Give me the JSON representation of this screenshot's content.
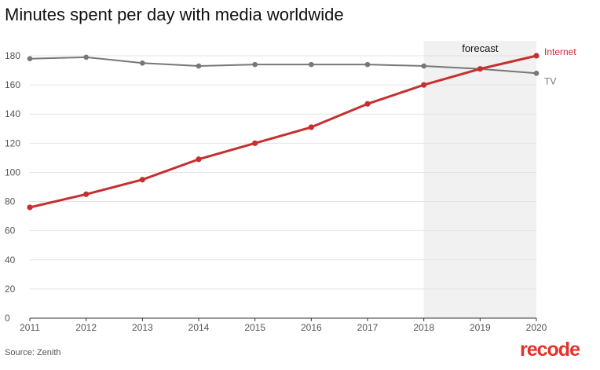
{
  "source": "Source: Zenith",
  "brand": "recode",
  "colors": {
    "internet": "#c62f2f",
    "tv": "#777777",
    "forecast_band": "#f1f1f1",
    "grid": "#e4e4e4",
    "brand": "#e8302a"
  },
  "chart_data": {
    "type": "line",
    "title": "Minutes spent per day with media worldwide",
    "xlabel": "",
    "ylabel": "",
    "x": [
      "2011",
      "2012",
      "2013",
      "2014",
      "2015",
      "2016",
      "2017",
      "2018",
      "2019",
      "2020"
    ],
    "ylim": [
      0,
      180
    ],
    "yticks": [
      0,
      20,
      40,
      60,
      80,
      100,
      120,
      140,
      160,
      180
    ],
    "grid": true,
    "forecast": {
      "label": "forecast",
      "from": "2018",
      "to": "2020"
    },
    "series": [
      {
        "name": "Internet",
        "key": "internet",
        "values": [
          76,
          85,
          95,
          109,
          120,
          131,
          147,
          160,
          171,
          180
        ]
      },
      {
        "name": "TV",
        "key": "tv",
        "values": [
          178,
          179,
          175,
          173,
          174,
          174,
          174,
          173,
          171,
          168
        ]
      }
    ]
  }
}
